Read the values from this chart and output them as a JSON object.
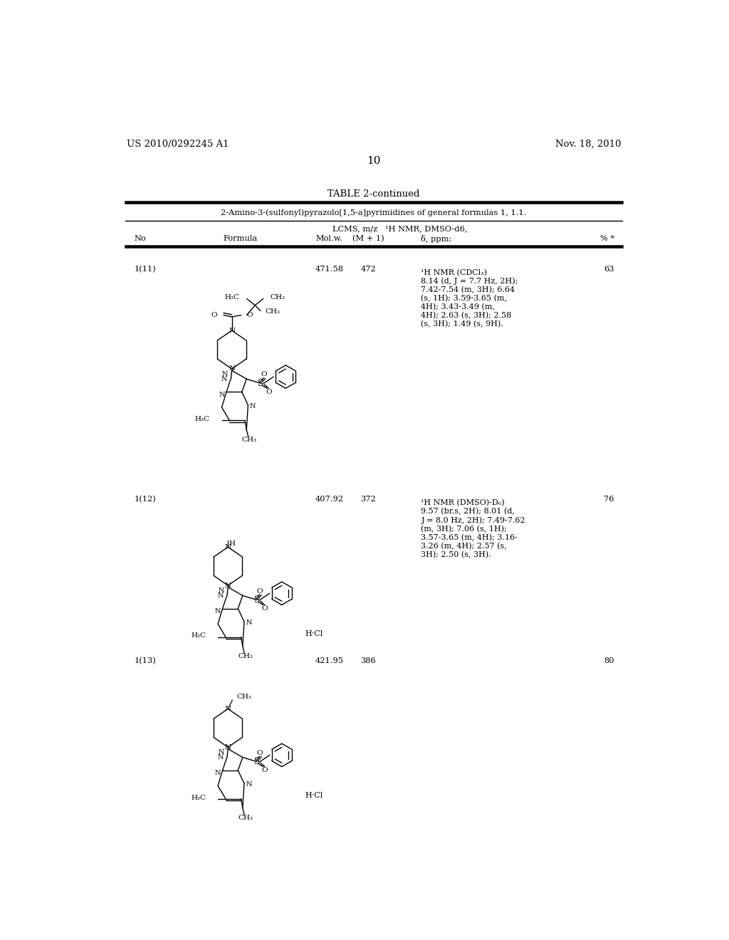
{
  "background_color": "#ffffff",
  "top_left_text": "US 2010/0292245 A1",
  "top_right_text": "Nov. 18, 2010",
  "page_number": "10",
  "table_title": "TABLE 2-continued",
  "table_subtitle": "2-Amino-3-(sulfonyl)pyrazolo[1,5-a]pyrimidines of general formulas 1, 1.1.",
  "col_header1": "LCMS, m/z",
  "col_header2": "¹H NMR, DMSO-d6,",
  "col_no": "No",
  "col_formula": "Formula",
  "col_molw": "Mol.w.",
  "col_mplus1": "(M + 1)",
  "col_delta": "δ, ppm:",
  "col_pct": "% *",
  "row1_no": "1(11)",
  "row1_molw": "471.58",
  "row1_mplus1": "472",
  "row1_nmr": "¹H NMR (CDCl₃)\n8.14 (d, J = 7.7 Hz, 2H);\n7.42-7.54 (m, 3H); 6.64\n(s, 1H); 3.59-3.65 (m,\n4H); 3.43-3.49 (m,\n4H); 2.63 (s, 3H); 2.58\n(s, 3H); 1.49 (s, 9H).",
  "row1_pct": "63",
  "row2_no": "1(12)",
  "row2_molw": "407.92",
  "row2_mplus1": "372",
  "row2_nmr": "¹H NMR (DMSO)-D₆)\n9.57 (br.s, 2H); 8.01 (d,\nJ = 8.0 Hz, 2H); 7.49-7.62\n(m, 3H); 7.06 (s, 1H);\n3.57-3.65 (m, 4H); 3.16-\n3.26 (m, 4H); 2.57 (s,\n3H); 2.50 (s, 3H).",
  "row2_pct": "76",
  "row3_no": "1(13)",
  "row3_molw": "421.95",
  "row3_mplus1": "386",
  "row3_nmr": "",
  "row3_pct": "80"
}
